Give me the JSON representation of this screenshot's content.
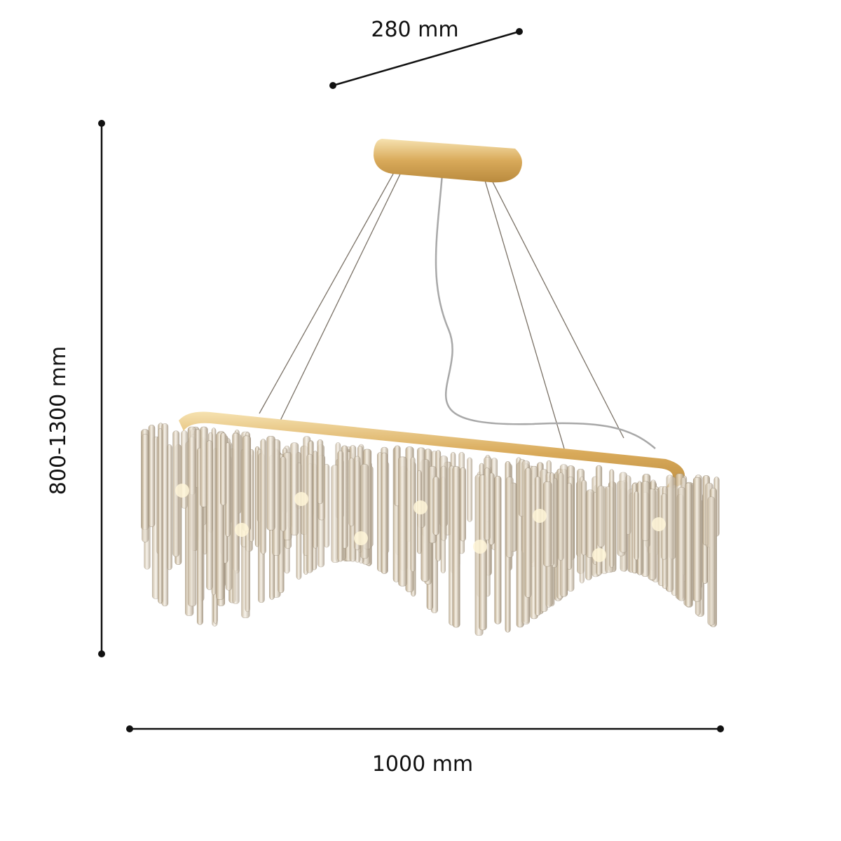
{
  "dimensions": {
    "depth_label": "280 mm",
    "height_label": "800-1300 mm",
    "width_label": "1000 mm"
  },
  "colors": {
    "dimension_line": "#111111",
    "brass": "#e6c37a",
    "crystal": "#d9cbb0"
  },
  "product_image": "crystal-chandelier-oval"
}
